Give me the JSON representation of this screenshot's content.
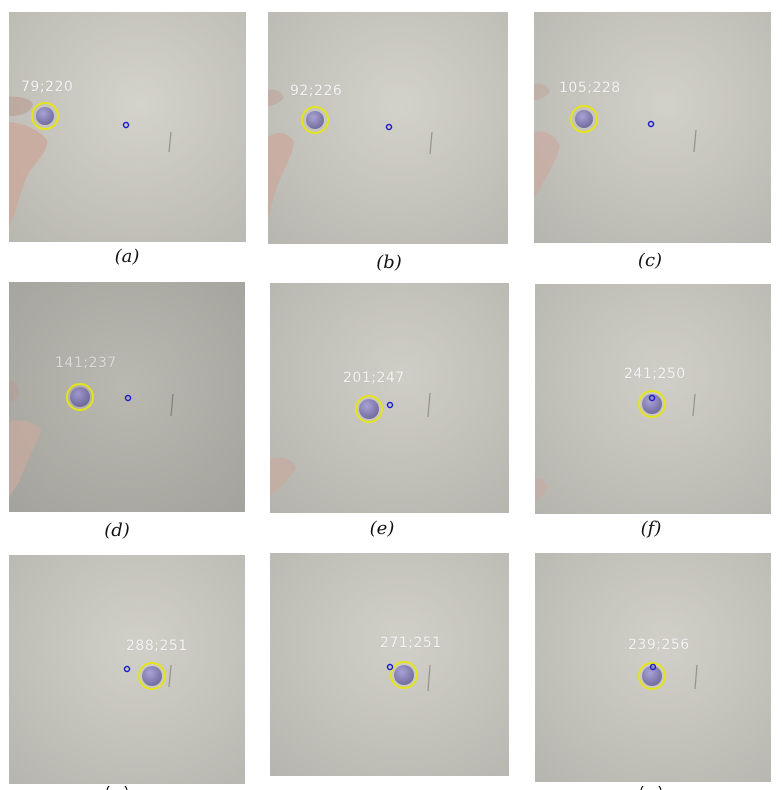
{
  "colors": {
    "detection_circle": "#e4e41c",
    "target_marker": "#1e1ec8",
    "ball": "#8b84b8",
    "surface_light": "#cfcdc4",
    "surface_dark": "#a9a8a3"
  },
  "panels": [
    {
      "coords": "79;220",
      "caption": "(a)",
      "caption_partial": false,
      "hand": true
    },
    {
      "coords": "92;226",
      "caption": "(b)",
      "caption_partial": false,
      "hand": true
    },
    {
      "coords": "105;228",
      "caption": "(c)",
      "caption_partial": false,
      "hand": true
    },
    {
      "coords": "141;237",
      "caption": "(d)",
      "caption_partial": false,
      "hand": true
    },
    {
      "coords": "201;247",
      "caption": "(e)",
      "caption_partial": false,
      "hand": true
    },
    {
      "coords": "241;250",
      "caption": "(f)",
      "caption_partial": false,
      "hand": true
    },
    {
      "coords": "288;251",
      "caption": "",
      "caption_partial": true,
      "hand": false
    },
    {
      "coords": "271;251",
      "caption": "",
      "caption_partial": false,
      "hand": false
    },
    {
      "coords": "239;256",
      "caption": "",
      "caption_partial": true,
      "hand": false
    }
  ]
}
